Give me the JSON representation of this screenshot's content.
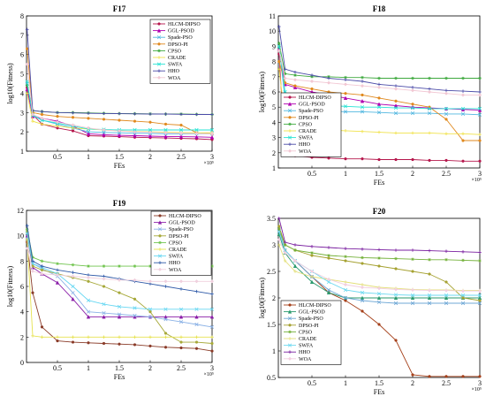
{
  "colors": {
    "HLCM-DIPSO": "#b5174c",
    "GGL-PSOD": "#b000b0",
    "Spade-PSO": "#52b7e0",
    "DPSO-PI": "#e0891e",
    "CPSO": "#3ea93e",
    "CRADE": "#f0e24a",
    "SWFA": "#27e3d4",
    "HHO": "#4b4ba8",
    "WOA": "#f2c8d4"
  },
  "colors_f19": {
    "HLCM-DIPSO": "#8a3b28",
    "GGL-PSOD": "#8b1fa8",
    "Spade-PSO": "#8bb2e6",
    "DPSO-PI": "#a7a93a",
    "CPSO": "#6fc44c",
    "CRADE": "#e6e24e",
    "SWFA": "#67d7f2",
    "HHO": "#2f5aa8",
    "WOA": "#f0d0de"
  },
  "colors_f20": {
    "HLCM-DIPSO": "#a5401a",
    "GGL-PSOD": "#2a9a6e",
    "Spade-PSO": "#6fa8d6",
    "DPSO-PI": "#a6a232",
    "CPSO": "#74b13a",
    "CRADE": "#e3df7a",
    "SWFA": "#6dd9f0",
    "HHO": "#7a1fa0",
    "WOA": "#f2cfe0"
  },
  "chart_data": [
    {
      "type": "line",
      "title": "F17",
      "xlabel": "FEs",
      "ylabel": "log10(Fitness)",
      "x_exponent": "×10⁵",
      "xlim": [
        0,
        3
      ],
      "ylim": [
        1,
        8
      ],
      "xticks": [
        0.5,
        1,
        1.5,
        2,
        2.5,
        3
      ],
      "xtick_labels": [
        "0.5",
        "1",
        "1.5",
        "2",
        "2.5",
        "3"
      ],
      "yticks": [
        1,
        2,
        3,
        4,
        5,
        6,
        7,
        8
      ],
      "ytick_labels": [
        "1",
        "2",
        "3",
        "4",
        "5",
        "6",
        "7",
        "8"
      ],
      "x": [
        0.01,
        0.1,
        0.25,
        0.5,
        0.75,
        1,
        1.25,
        1.5,
        1.75,
        2,
        2.25,
        2.5,
        2.75,
        3
      ],
      "series": [
        {
          "name": "HLCM-DIPSO",
          "values": [
            4.3,
            2.9,
            2.4,
            2.2,
            2.05,
            1.8,
            1.78,
            1.75,
            1.72,
            1.7,
            1.68,
            1.66,
            1.64,
            1.6
          ]
        },
        {
          "name": "GGL-PSOD",
          "values": [
            4.2,
            2.8,
            2.7,
            2.55,
            2.3,
            1.9,
            1.85,
            1.82,
            1.8,
            1.78,
            1.76,
            1.75,
            1.74,
            1.72
          ]
        },
        {
          "name": "Spade-PSO",
          "values": [
            4.5,
            2.9,
            2.6,
            2.4,
            2.2,
            2.0,
            1.97,
            1.95,
            1.93,
            1.92,
            1.9,
            1.9,
            1.9,
            1.9
          ]
        },
        {
          "name": "DPSO-PI",
          "values": [
            6.3,
            3.0,
            2.9,
            2.8,
            2.75,
            2.7,
            2.65,
            2.6,
            2.55,
            2.5,
            2.4,
            2.35,
            1.95,
            1.9
          ]
        },
        {
          "name": "CPSO",
          "values": [
            4.4,
            3.1,
            3.05,
            3.0,
            3.0,
            2.98,
            2.96,
            2.95,
            2.94,
            2.93,
            2.92,
            2.92,
            2.91,
            2.9
          ]
        },
        {
          "name": "CRADE",
          "values": [
            4.0,
            2.55,
            2.4,
            2.3,
            2.2,
            2.15,
            2.1,
            2.05,
            2.02,
            2.0,
            1.98,
            1.96,
            1.95,
            1.95
          ]
        },
        {
          "name": "SWFA",
          "values": [
            4.6,
            2.85,
            2.6,
            2.45,
            2.3,
            2.15,
            2.12,
            2.1,
            2.1,
            2.1,
            2.1,
            2.1,
            2.1,
            2.1
          ]
        },
        {
          "name": "HHO",
          "values": [
            7.3,
            3.1,
            3.05,
            3.0,
            2.98,
            2.96,
            2.95,
            2.94,
            2.93,
            2.92,
            2.92,
            2.91,
            2.9,
            2.9
          ]
        },
        {
          "name": "WOA",
          "values": [
            5.5,
            2.9,
            2.7,
            2.5,
            2.35,
            2.2,
            2.1,
            2.05,
            2.0,
            1.98,
            1.95,
            1.93,
            1.92,
            1.9
          ]
        }
      ]
    },
    {
      "type": "line",
      "title": "F18",
      "xlabel": "FEs",
      "ylabel": "log10(Fitness)",
      "x_exponent": "×10⁵",
      "xlim": [
        0,
        3
      ],
      "ylim": [
        1,
        11
      ],
      "xticks": [
        0.5,
        1,
        1.5,
        2,
        2.5,
        3
      ],
      "xtick_labels": [
        "0.5",
        "1",
        "1.5",
        "2",
        "2.5",
        "3"
      ],
      "yticks": [
        1,
        2,
        3,
        4,
        5,
        6,
        7,
        8,
        9,
        10,
        11
      ],
      "ytick_labels": [
        "1",
        "2",
        "3",
        "4",
        "5",
        "6",
        "7",
        "8",
        "9",
        "10",
        "11"
      ],
      "x": [
        0.01,
        0.1,
        0.25,
        0.5,
        0.75,
        1,
        1.25,
        1.5,
        1.75,
        2,
        2.25,
        2.5,
        2.75,
        3
      ],
      "series": [
        {
          "name": "HLCM-DIPSO",
          "values": [
            8.5,
            2.0,
            1.8,
            1.7,
            1.65,
            1.6,
            1.6,
            1.55,
            1.55,
            1.55,
            1.5,
            1.5,
            1.45,
            1.45
          ]
        },
        {
          "name": "GGL-PSOD",
          "values": [
            8.8,
            6.5,
            6.3,
            6.0,
            5.8,
            5.6,
            5.4,
            5.2,
            5.1,
            5.0,
            4.95,
            4.9,
            4.85,
            4.8
          ]
        },
        {
          "name": "Spade-PSO",
          "values": [
            9.0,
            5.5,
            5.0,
            4.8,
            4.75,
            4.7,
            4.7,
            4.65,
            4.6,
            4.6,
            4.6,
            4.55,
            4.55,
            4.5
          ]
        },
        {
          "name": "DPSO-PI",
          "values": [
            8.0,
            6.6,
            6.4,
            6.2,
            6.0,
            5.9,
            5.8,
            5.6,
            5.4,
            5.2,
            5.0,
            4.2,
            2.8,
            2.8
          ]
        },
        {
          "name": "CPSO",
          "values": [
            9.2,
            7.2,
            7.1,
            7.0,
            7.0,
            6.95,
            6.95,
            6.9,
            6.9,
            6.9,
            6.9,
            6.9,
            6.9,
            6.9
          ]
        },
        {
          "name": "CRADE",
          "values": [
            7.5,
            4.2,
            3.8,
            3.6,
            3.5,
            3.45,
            3.4,
            3.35,
            3.3,
            3.3,
            3.3,
            3.25,
            3.25,
            3.2
          ]
        },
        {
          "name": "SWFA",
          "values": [
            9.0,
            6.0,
            5.5,
            5.2,
            5.1,
            5.05,
            5.0,
            5.0,
            4.95,
            4.95,
            4.9,
            4.9,
            4.9,
            4.9
          ]
        },
        {
          "name": "HHO",
          "values": [
            10.3,
            7.5,
            7.3,
            7.1,
            6.9,
            6.8,
            6.7,
            6.5,
            6.4,
            6.3,
            6.2,
            6.1,
            6.05,
            6.0
          ]
        },
        {
          "name": "WOA",
          "values": [
            8.7,
            6.9,
            6.8,
            6.7,
            6.6,
            6.5,
            6.4,
            6.3,
            6.2,
            6.1,
            6.0,
            5.9,
            5.8,
            5.8
          ]
        }
      ]
    },
    {
      "type": "line",
      "title": "F19",
      "xlabel": "FEs",
      "ylabel": "log10(Fitness)",
      "x_exponent": "×10⁵",
      "xlim": [
        0,
        3
      ],
      "ylim": [
        0,
        12
      ],
      "xticks": [
        0.5,
        1,
        1.5,
        2,
        2.5,
        3
      ],
      "xtick_labels": [
        "0.5",
        "1",
        "1.5",
        "2",
        "2.5",
        "3"
      ],
      "yticks": [
        0,
        2,
        4,
        6,
        8,
        10,
        12
      ],
      "ytick_labels": [
        "0",
        "2",
        "4",
        "6",
        "8",
        "10",
        "12"
      ],
      "x": [
        0.01,
        0.1,
        0.25,
        0.5,
        0.75,
        1,
        1.25,
        1.5,
        1.75,
        2,
        2.25,
        2.5,
        2.75,
        3
      ],
      "series": [
        {
          "name": "HLCM-DIPSO",
          "values": [
            9.5,
            5.5,
            2.8,
            1.7,
            1.6,
            1.55,
            1.5,
            1.45,
            1.4,
            1.3,
            1.2,
            1.15,
            1.1,
            0.9
          ]
        },
        {
          "name": "GGL-PSOD",
          "values": [
            10.0,
            7.5,
            7.0,
            6.3,
            5.0,
            3.6,
            3.6,
            3.6,
            3.6,
            3.6,
            3.6,
            3.6,
            3.6,
            3.6
          ]
        },
        {
          "name": "Spade-PSO",
          "values": [
            9.8,
            7.8,
            7.4,
            6.8,
            5.5,
            4.0,
            3.9,
            3.8,
            3.7,
            3.6,
            3.4,
            3.2,
            3.0,
            2.8
          ]
        },
        {
          "name": "DPSO-PI",
          "values": [
            10.3,
            7.6,
            7.3,
            7.0,
            6.7,
            6.4,
            6.0,
            5.5,
            5.0,
            4.0,
            2.3,
            1.6,
            1.6,
            1.5
          ]
        },
        {
          "name": "CPSO",
          "values": [
            10.5,
            8.3,
            8.0,
            7.8,
            7.7,
            7.6,
            7.6,
            7.6,
            7.6,
            7.6,
            7.6,
            7.6,
            7.6,
            7.6
          ]
        },
        {
          "name": "CRADE",
          "values": [
            9.7,
            2.1,
            2.0,
            2.0,
            2.0,
            2.0,
            2.0,
            2.0,
            2.0,
            2.0,
            2.0,
            2.0,
            2.0,
            2.0
          ]
        },
        {
          "name": "SWFA",
          "values": [
            10.2,
            7.8,
            7.5,
            7.0,
            6.0,
            4.9,
            4.6,
            4.4,
            4.3,
            4.2,
            4.2,
            4.2,
            4.2,
            4.2
          ]
        },
        {
          "name": "HHO",
          "values": [
            10.8,
            8.0,
            7.6,
            7.3,
            7.1,
            6.9,
            6.8,
            6.6,
            6.4,
            6.2,
            6.0,
            5.8,
            5.6,
            5.4
          ]
        },
        {
          "name": "WOA",
          "values": [
            9.0,
            7.2,
            7.0,
            6.9,
            6.8,
            6.7,
            6.6,
            6.5,
            6.5,
            6.4,
            6.4,
            6.4,
            6.4,
            6.4
          ]
        }
      ]
    },
    {
      "type": "line",
      "title": "F20",
      "xlabel": "FEs",
      "ylabel": "log10(Fitness)",
      "x_exponent": "×10⁵",
      "xlim": [
        0,
        3
      ],
      "ylim": [
        0.5,
        3.5
      ],
      "xticks": [
        0.5,
        1,
        1.5,
        2,
        2.5,
        3
      ],
      "xtick_labels": [
        "0.5",
        "1",
        "1.5",
        "2",
        "2.5",
        "3"
      ],
      "yticks": [
        0.5,
        1,
        1.5,
        2,
        2.5,
        3,
        3.5
      ],
      "ytick_labels": [
        "0.5",
        "1",
        "1.5",
        "2",
        "2.5",
        "3",
        "3.5"
      ],
      "x": [
        0.01,
        0.1,
        0.25,
        0.5,
        0.75,
        1,
        1.25,
        1.5,
        1.75,
        2,
        2.25,
        2.5,
        2.75,
        3
      ],
      "series": [
        {
          "name": "HLCM-DIPSO",
          "values": [
            3.3,
            2.9,
            2.7,
            2.4,
            2.1,
            1.95,
            1.75,
            1.5,
            1.2,
            0.55,
            0.52,
            0.52,
            0.52,
            0.52
          ]
        },
        {
          "name": "GGL-PSOD",
          "values": [
            3.2,
            2.85,
            2.6,
            2.3,
            2.1,
            2.0,
            2.0,
            2.0,
            2.0,
            2.0,
            2.0,
            2.0,
            2.0,
            2.0
          ]
        },
        {
          "name": "Spade-PSO",
          "values": [
            3.3,
            2.9,
            2.7,
            2.4,
            2.15,
            2.0,
            1.95,
            1.92,
            1.9,
            1.9,
            1.9,
            1.9,
            1.9,
            1.9
          ]
        },
        {
          "name": "DPSO-PI",
          "values": [
            3.35,
            3.0,
            2.9,
            2.8,
            2.75,
            2.7,
            2.65,
            2.6,
            2.55,
            2.5,
            2.45,
            2.3,
            2.0,
            1.95
          ]
        },
        {
          "name": "CPSO",
          "values": [
            3.3,
            3.0,
            2.9,
            2.85,
            2.8,
            2.78,
            2.76,
            2.75,
            2.74,
            2.73,
            2.72,
            2.72,
            2.71,
            2.7
          ]
        },
        {
          "name": "CRADE",
          "values": [
            3.0,
            2.7,
            2.5,
            2.4,
            2.35,
            2.3,
            2.25,
            2.2,
            2.18,
            2.16,
            2.15,
            2.15,
            2.14,
            2.14
          ]
        },
        {
          "name": "SWFA",
          "values": [
            3.25,
            2.9,
            2.7,
            2.5,
            2.3,
            2.15,
            2.1,
            2.08,
            2.06,
            2.05,
            2.05,
            2.05,
            2.05,
            2.05
          ]
        },
        {
          "name": "HHO",
          "values": [
            3.5,
            3.05,
            3.0,
            2.97,
            2.95,
            2.93,
            2.92,
            2.91,
            2.9,
            2.9,
            2.89,
            2.88,
            2.87,
            2.86
          ]
        },
        {
          "name": "WOA",
          "values": [
            3.1,
            2.85,
            2.7,
            2.5,
            2.35,
            2.25,
            2.2,
            2.18,
            2.16,
            2.15,
            2.14,
            2.14,
            2.13,
            2.13
          ]
        }
      ]
    }
  ]
}
